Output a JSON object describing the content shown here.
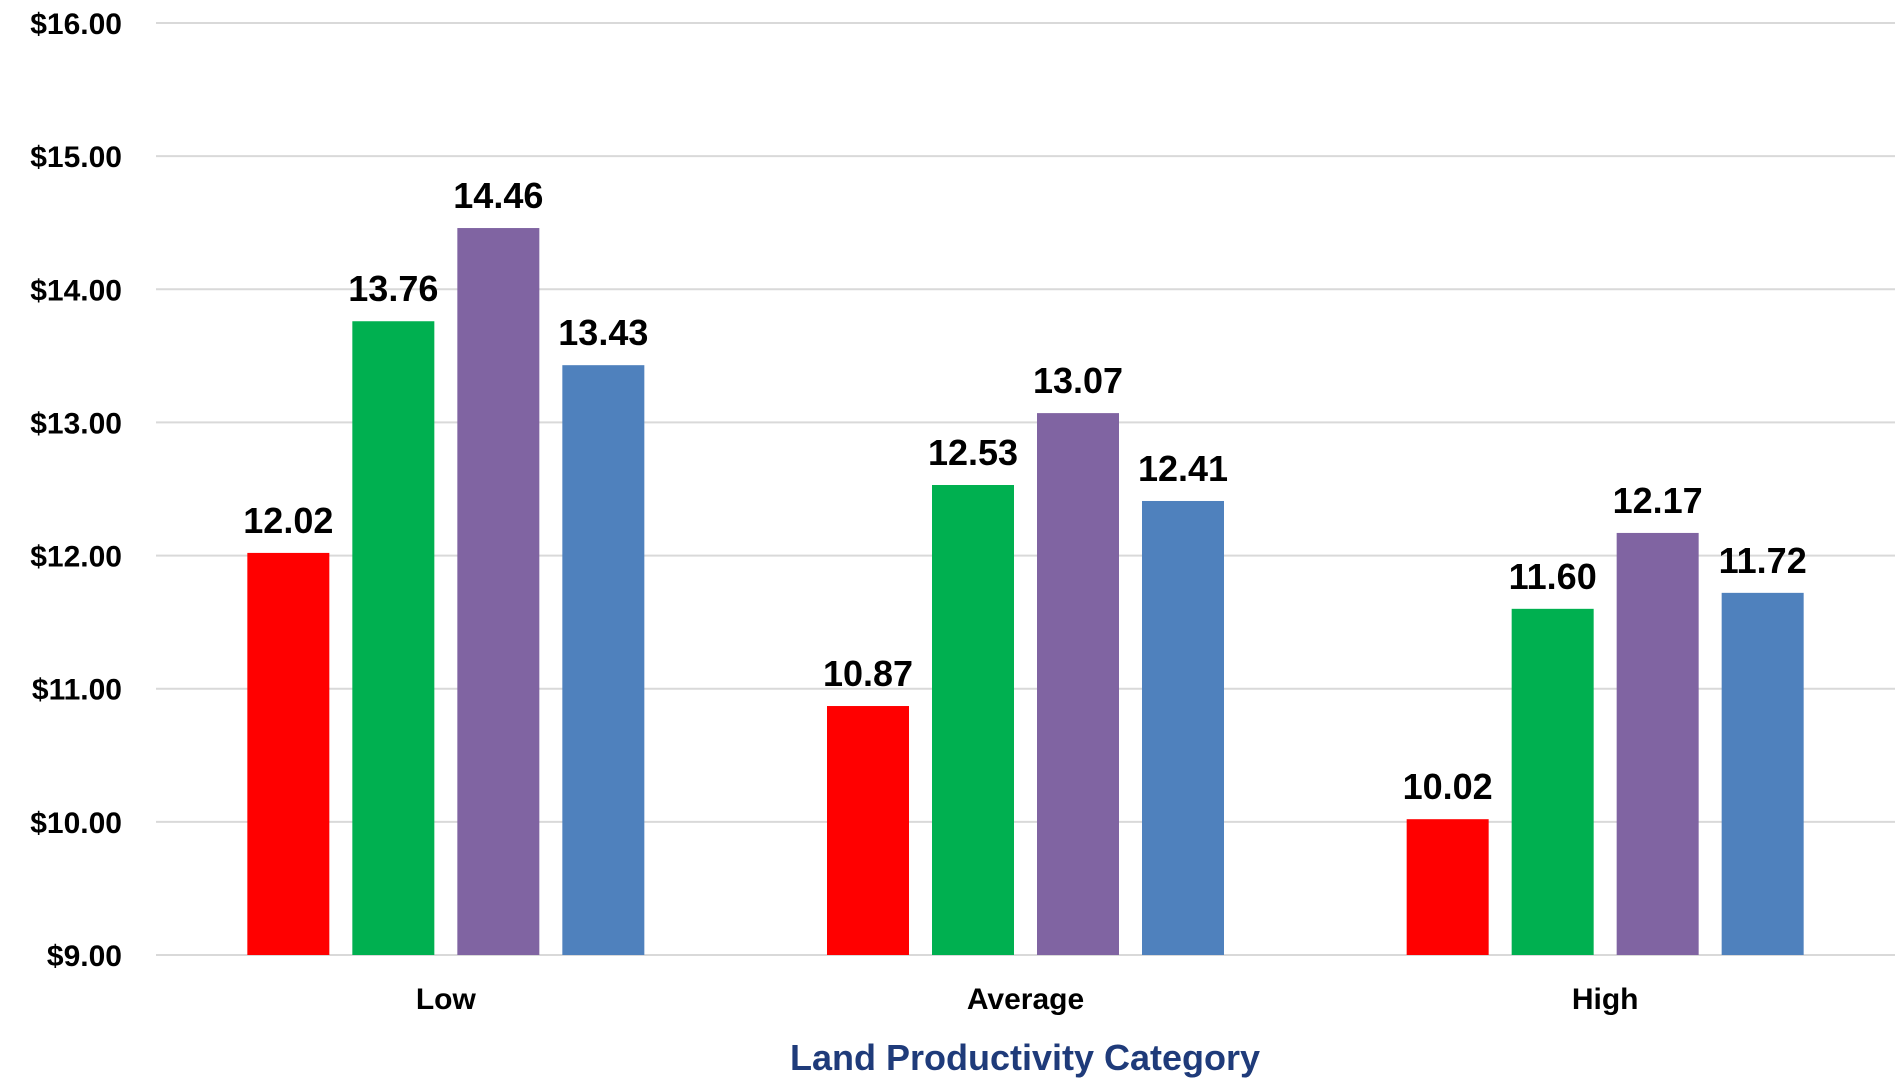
{
  "chart_data": {
    "type": "bar",
    "categories": [
      "Low",
      "Average",
      "High"
    ],
    "series": [
      {
        "values": [
          12.02,
          10.87,
          10.02
        ],
        "color": "#ff0000"
      },
      {
        "values": [
          13.76,
          12.53,
          11.6
        ],
        "color": "#00b050"
      },
      {
        "values": [
          14.46,
          13.07,
          12.17
        ],
        "color": "#8064a2"
      },
      {
        "values": [
          13.43,
          12.41,
          11.72
        ],
        "color": "#4f81bd"
      }
    ],
    "data_labels": [
      [
        "12.02",
        "10.87",
        "10.02"
      ],
      [
        "13.76",
        "12.53",
        "11.60"
      ],
      [
        "14.46",
        "13.07",
        "12.17"
      ],
      [
        "13.43",
        "12.41",
        "11.72"
      ]
    ],
    "yticks": [
      9,
      10,
      11,
      12,
      13,
      14,
      15,
      16
    ],
    "ytick_labels": [
      "$9.00",
      "$10.00",
      "$11.00",
      "$12.00",
      "$13.00",
      "$14.00",
      "$15.00",
      "$16.00"
    ],
    "ylim": [
      9,
      16
    ],
    "xlabel": "Land Productivity Category",
    "xlabel_color": "#1f3b7a",
    "grid": true,
    "grid_color": "#d9d9d9",
    "legend": "none"
  }
}
